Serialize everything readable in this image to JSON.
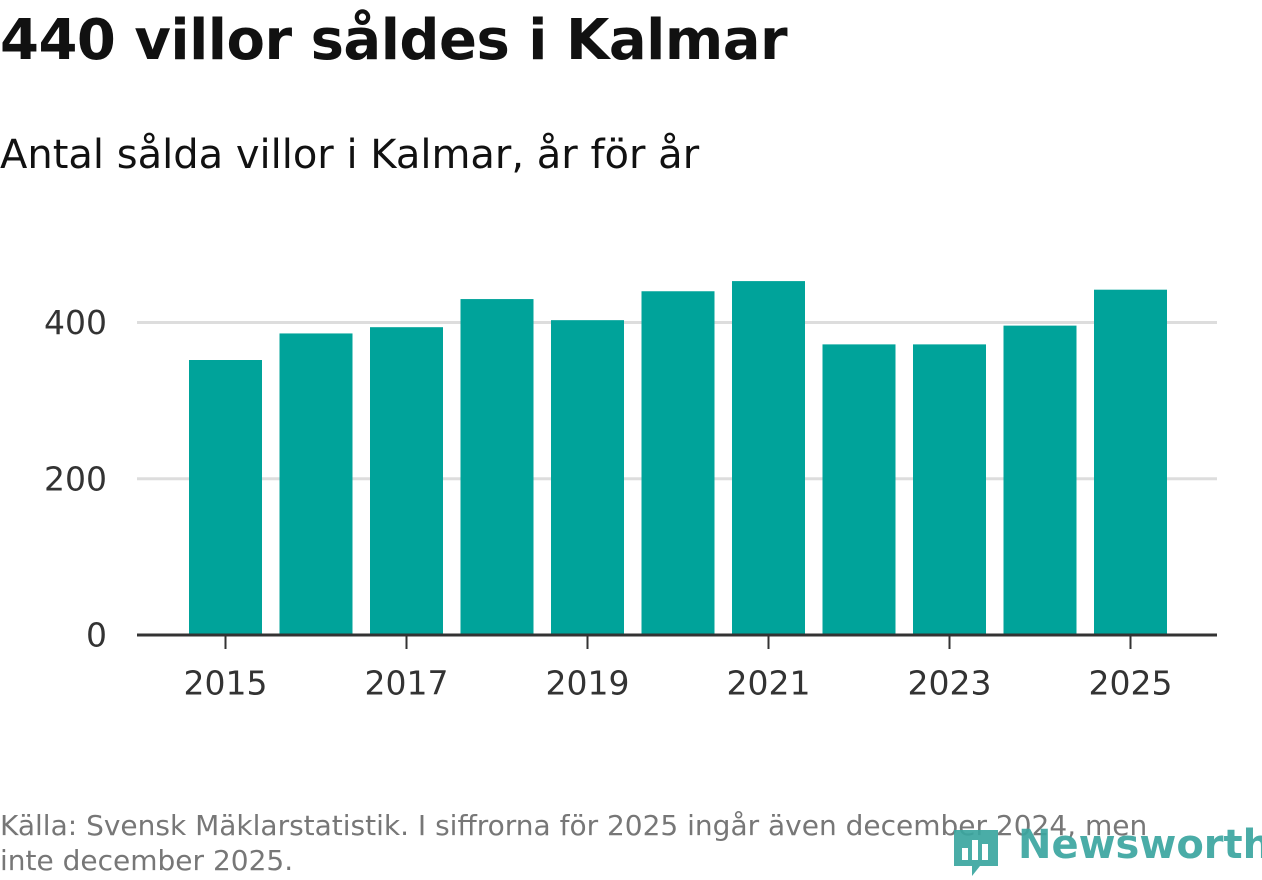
{
  "title": "440 villor såldes i Kalmar",
  "subtitle": "Antal sålda villor i Kalmar, år för år",
  "colors": {
    "bar": "#00a39a",
    "grid": "#dddddd",
    "axis": "#333333",
    "brand": "#3ba6a0"
  },
  "chart_data": {
    "type": "bar",
    "title": "440 villor såldes i Kalmar",
    "subtitle": "Antal sålda villor i Kalmar, år för år",
    "xlabel": "",
    "ylabel": "",
    "categories": [
      "2015",
      "2016",
      "2017",
      "2018",
      "2019",
      "2020",
      "2021",
      "2022",
      "2023",
      "2024",
      "2025"
    ],
    "values": [
      352,
      386,
      394,
      430,
      403,
      440,
      453,
      372,
      372,
      396,
      442
    ],
    "x_tick_labels": [
      "2015",
      "2017",
      "2019",
      "2021",
      "2023",
      "2025"
    ],
    "y_ticks": [
      0,
      200,
      400
    ],
    "ylim": [
      0,
      480
    ],
    "grid": true
  },
  "footer": {
    "source": "Källa: Svensk Mäklarstatistik. I siffrorna för 2025 ingår även december 2024, men inte december 2025.",
    "brand": "Newsworthy"
  }
}
